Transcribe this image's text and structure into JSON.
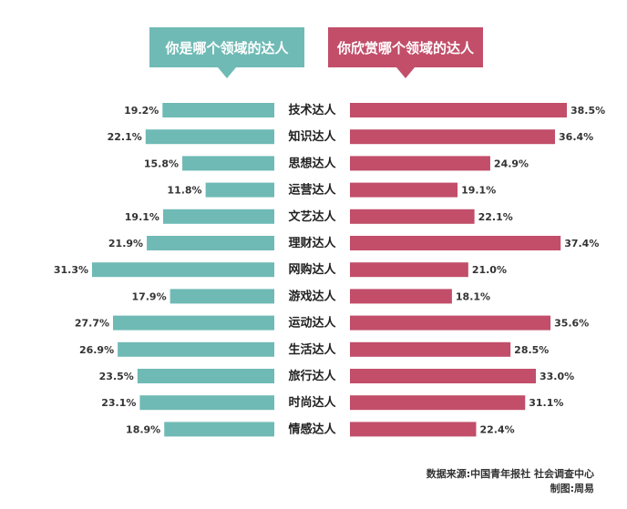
{
  "headers": {
    "left": "你是哪个领域的达人",
    "right": "你欣赏哪个领域的达人"
  },
  "colors": {
    "left": "#6fbab5",
    "right": "#c24e6a"
  },
  "chart_data": {
    "type": "bar",
    "categories": [
      "技术达人",
      "知识达人",
      "思想达人",
      "运营达人",
      "文艺达人",
      "理财达人",
      "网购达人",
      "游戏达人",
      "运动达人",
      "生活达人",
      "旅行达人",
      "时尚达人",
      "情感达人"
    ],
    "series": [
      {
        "name": "你是哪个领域的达人",
        "values": [
          19.2,
          22.1,
          15.8,
          11.8,
          19.1,
          21.9,
          31.3,
          17.9,
          27.7,
          26.9,
          23.5,
          23.1,
          18.9
        ],
        "labels": [
          "19.2%",
          "22.1%",
          "15.8%",
          "11.8%",
          "19.1%",
          "21.9%",
          "31.3%",
          "17.9%",
          "27.7%",
          "26.9%",
          "23.5%",
          "23.1%",
          "18.9%"
        ]
      },
      {
        "name": "你欣赏哪个领域的达人",
        "values": [
          38.5,
          36.4,
          24.9,
          19.1,
          22.1,
          37.4,
          21.0,
          18.1,
          35.6,
          28.5,
          33.0,
          31.1,
          22.4
        ],
        "labels": [
          "38.5%",
          "36.4%",
          "24.9%",
          "19.1%",
          "22.1%",
          "37.4%",
          "21.0%",
          "18.1%",
          "35.6%",
          "28.5%",
          "33.0%",
          "31.1%",
          "22.4%"
        ]
      }
    ],
    "unit": "%",
    "orientation": "horizontal-butterfly"
  },
  "source": {
    "line1": "数据来源:中国青年报社 社会调查中心",
    "line2": "制图:周易"
  }
}
